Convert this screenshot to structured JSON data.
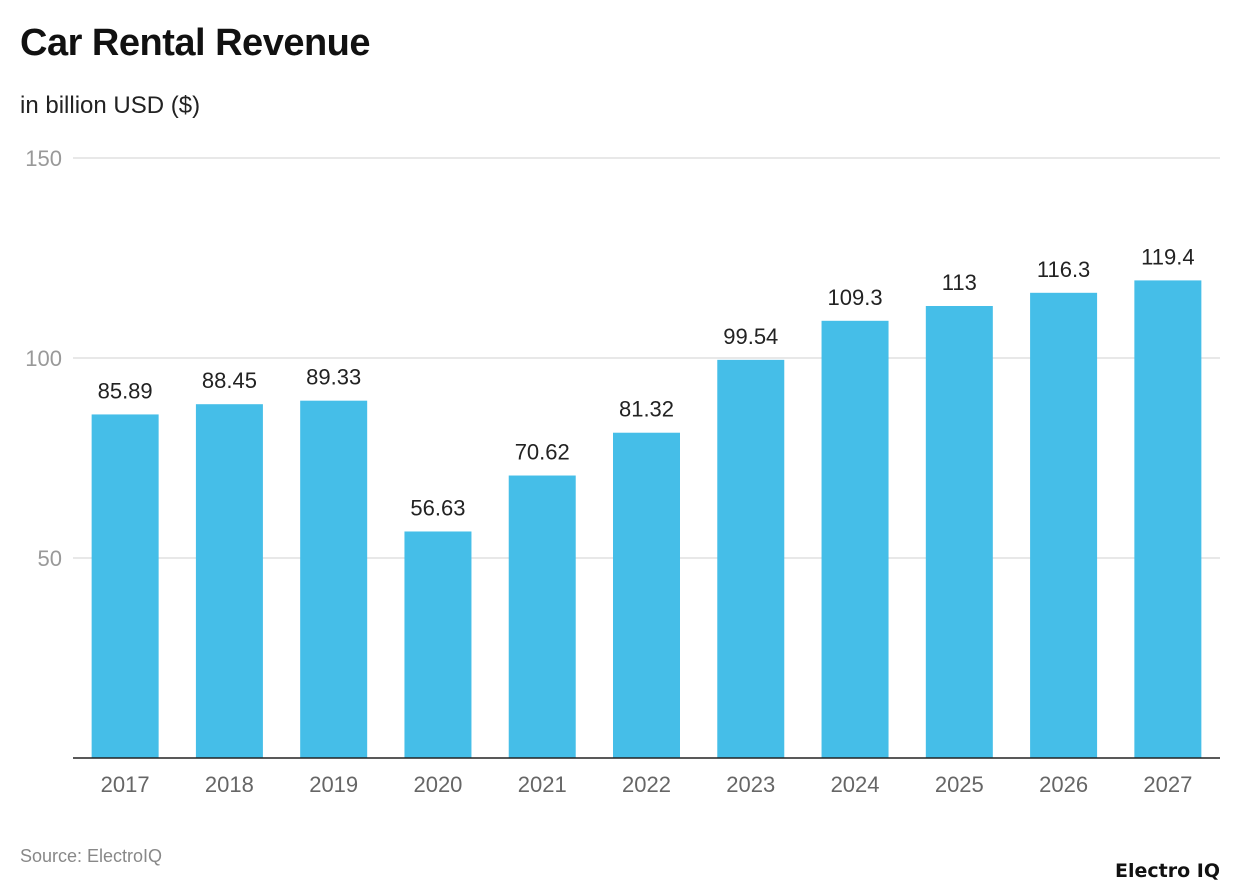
{
  "chart_data": {
    "type": "bar",
    "title": "Car Rental Revenue",
    "subtitle": "in billion USD ($)",
    "categories": [
      "2017",
      "2018",
      "2019",
      "2020",
      "2021",
      "2022",
      "2023",
      "2024",
      "2025",
      "2026",
      "2027"
    ],
    "values": [
      85.89,
      88.45,
      89.33,
      56.63,
      70.62,
      81.32,
      99.54,
      109.3,
      113,
      116.3,
      119.4
    ],
    "data_labels": [
      "85.89",
      "88.45",
      "89.33",
      "56.63",
      "70.62",
      "81.32",
      "99.54",
      "109.3",
      "113",
      "116.3",
      "119.4"
    ],
    "ylim": [
      0,
      150
    ],
    "yticks": [
      50,
      100,
      150
    ],
    "grid": true,
    "bar_color": "#45BEE8",
    "source": "Source: ElectroIQ"
  },
  "brand": "Electro IQ"
}
